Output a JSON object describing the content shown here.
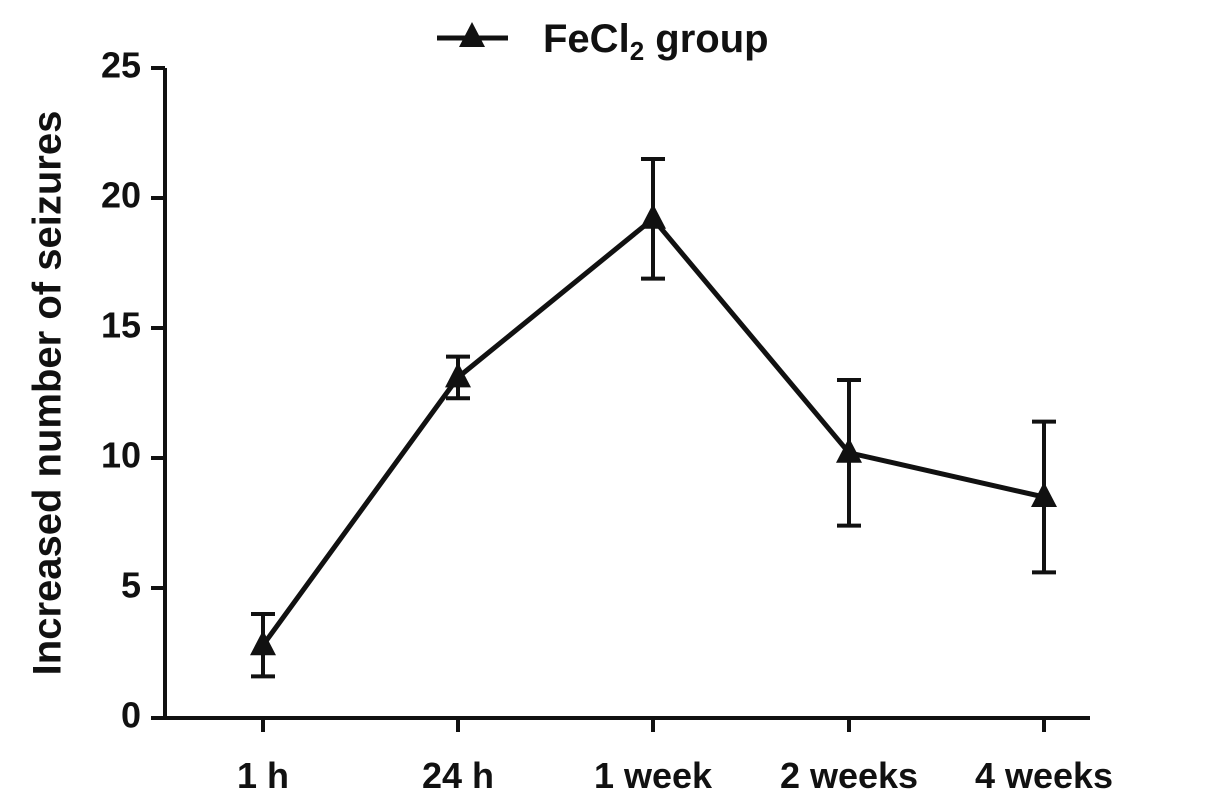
{
  "chart_data": {
    "type": "line",
    "title": "",
    "xlabel": "",
    "ylabel": "Increased number of seizures",
    "ylim": [
      0,
      25
    ],
    "yticks": [
      0,
      5,
      10,
      15,
      20,
      25
    ],
    "grid": false,
    "legend_position": "top-center",
    "categories": [
      "1 h",
      "24 h",
      "1 week",
      "2 weeks",
      "4 weeks"
    ],
    "series": [
      {
        "name": "FeCl2 group",
        "name_main": "FeCl",
        "name_sub": "2",
        "name_tail": " group",
        "marker": "triangle",
        "color": "#111111",
        "values": [
          2.8,
          13.1,
          19.2,
          10.2,
          8.5
        ],
        "error": [
          1.2,
          0.8,
          2.3,
          2.8,
          2.9
        ]
      }
    ]
  }
}
